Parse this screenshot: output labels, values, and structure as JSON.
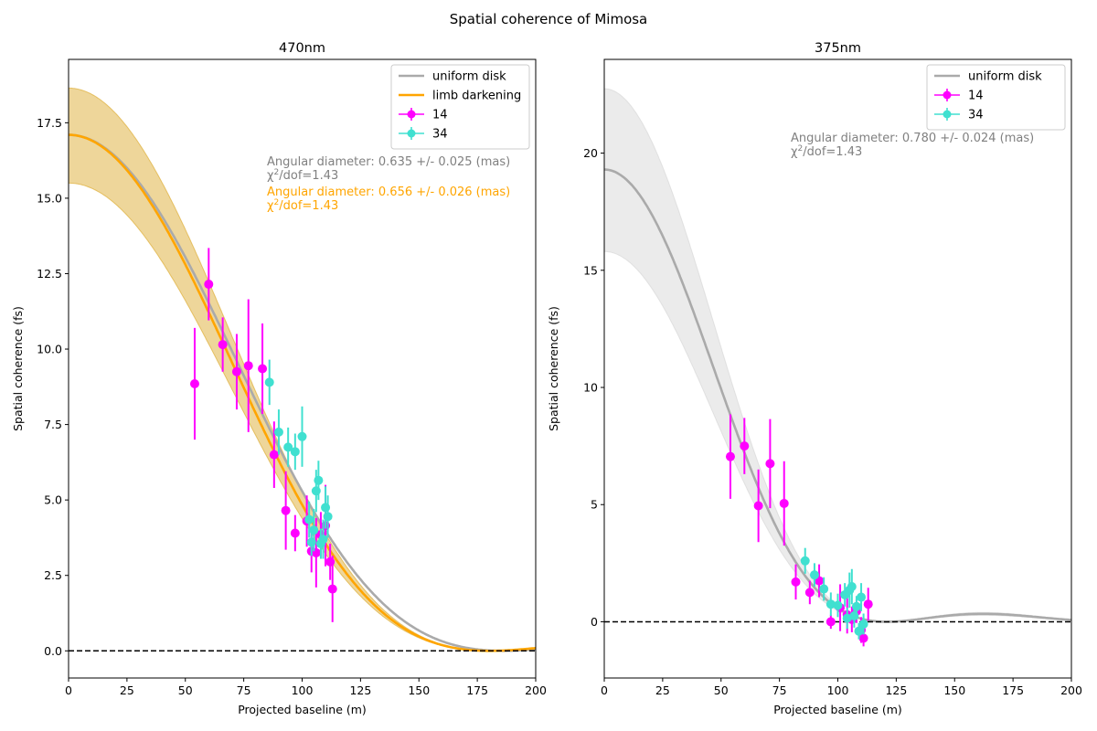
{
  "figure": {
    "title": "Spatial coherence of Mimosa"
  },
  "chart_data": [
    {
      "type": "scatter",
      "title": "470nm",
      "xlabel": "Projected baseline (m)",
      "ylabel": "Spatial coherence (fs)",
      "xlim": [
        0,
        200
      ],
      "ylim": [
        -0.9,
        19.6
      ],
      "xticks": [
        0,
        25,
        50,
        75,
        100,
        125,
        150,
        175,
        200
      ],
      "yticks": [
        0.0,
        2.5,
        5.0,
        7.5,
        10.0,
        12.5,
        15.0,
        17.5
      ],
      "ytick_labels": [
        "0.0",
        "2.5",
        "5.0",
        "7.5",
        "10.0",
        "12.5",
        "15.0",
        "17.5"
      ],
      "grid": false,
      "legend": {
        "position": "top-right",
        "entries": [
          {
            "label": "uniform disk",
            "kind": "line",
            "color": "#aaaaaa"
          },
          {
            "label": "limb darkening",
            "kind": "line",
            "color": "#ffa500"
          },
          {
            "label": "14",
            "kind": "errorbar",
            "color": "#ff00ff"
          },
          {
            "label": "34",
            "kind": "errorbar",
            "color": "#40e0d0"
          }
        ]
      },
      "annotations": [
        {
          "line1": "Angular diameter: 0.635 +/- 0.025 (mas)",
          "line2_pre": "χ",
          "line2_sup": "2",
          "line2_post": "/dof=1.43",
          "color": "#808080"
        },
        {
          "line1": "Angular diameter: 0.656 +/- 0.026 (mas)",
          "line2_pre": "χ",
          "line2_sup": "2",
          "line2_post": "/dof=1.43",
          "color": "#ffa500"
        }
      ],
      "models": [
        {
          "name": "uniform disk",
          "color": "#aaaaaa",
          "peak": 17.1,
          "theta_mas": 0.635,
          "band": false
        },
        {
          "name": "limb darkening",
          "color": "#ffa500",
          "peak": 17.1,
          "theta_mas": 0.656,
          "band": true,
          "band_color": "#daa520",
          "band_peak_upper": 18.65,
          "band_peak_lower": 15.5
        }
      ],
      "wavelength_nm": 470,
      "series": [
        {
          "name": "14",
          "color": "#ff00ff",
          "x": [
            54,
            60,
            66,
            72,
            77,
            83,
            88,
            93,
            97,
            102,
            104,
            106,
            108,
            110,
            112,
            113
          ],
          "y": [
            8.85,
            12.15,
            10.15,
            9.25,
            9.45,
            9.35,
            6.5,
            4.65,
            3.9,
            4.3,
            3.3,
            3.25,
            3.85,
            4.15,
            2.95,
            2.05
          ],
          "err": [
            1.85,
            1.2,
            0.9,
            1.25,
            2.2,
            1.5,
            1.1,
            1.3,
            0.6,
            0.85,
            0.7,
            1.15,
            0.75,
            1.35,
            0.6,
            1.1
          ]
        },
        {
          "name": "34",
          "color": "#40e0d0",
          "x": [
            86,
            90,
            94,
            97,
            100,
            103,
            104,
            105,
            106,
            107,
            108,
            109,
            110,
            111
          ],
          "y": [
            8.9,
            7.25,
            6.75,
            6.6,
            7.1,
            4.35,
            3.6,
            4.0,
            5.3,
            5.65,
            3.55,
            3.7,
            4.75,
            4.45
          ],
          "err": [
            0.75,
            0.75,
            0.65,
            0.6,
            1.0,
            0.6,
            0.45,
            0.7,
            0.7,
            0.65,
            0.5,
            0.65,
            0.7,
            0.7
          ]
        }
      ]
    },
    {
      "type": "scatter",
      "title": "375nm",
      "xlabel": "Projected baseline (m)",
      "ylabel": "Spatial coherence (fs)",
      "xlim": [
        0,
        200
      ],
      "ylim": [
        -2.4,
        24.0
      ],
      "xticks": [
        0,
        25,
        50,
        75,
        100,
        125,
        150,
        175,
        200
      ],
      "yticks": [
        0,
        5,
        10,
        15,
        20
      ],
      "ytick_labels": [
        "0",
        "5",
        "10",
        "15",
        "20"
      ],
      "grid": false,
      "legend": {
        "position": "top-right",
        "entries": [
          {
            "label": "uniform disk",
            "kind": "line",
            "color": "#aaaaaa"
          },
          {
            "label": "14",
            "kind": "errorbar",
            "color": "#ff00ff"
          },
          {
            "label": "34",
            "kind": "errorbar",
            "color": "#40e0d0"
          }
        ]
      },
      "annotations": [
        {
          "line1": "Angular diameter: 0.780 +/- 0.024 (mas)",
          "line2_pre": "χ",
          "line2_sup": "2",
          "line2_post": "/dof=1.43",
          "color": "#808080"
        }
      ],
      "models": [
        {
          "name": "uniform disk",
          "color": "#aaaaaa",
          "peak": 19.3,
          "theta_mas": 0.78,
          "band": true,
          "band_color": "#d3d3d3",
          "band_peak_upper": 22.75,
          "band_peak_lower": 15.8
        }
      ],
      "wavelength_nm": 375,
      "series": [
        {
          "name": "14",
          "color": "#ff00ff",
          "x": [
            54,
            60,
            66,
            71,
            77,
            82,
            88,
            92,
            97,
            101,
            104,
            106,
            108,
            110,
            111,
            113
          ],
          "y": [
            7.05,
            7.5,
            4.95,
            6.75,
            5.05,
            1.7,
            1.25,
            1.75,
            0.0,
            0.6,
            0.3,
            0.1,
            0.45,
            -0.35,
            -0.7,
            0.75
          ],
          "err": [
            1.8,
            1.2,
            1.55,
            1.9,
            1.8,
            0.75,
            0.5,
            0.7,
            0.3,
            1.0,
            0.8,
            0.55,
            0.5,
            0.55,
            0.35,
            0.7
          ]
        },
        {
          "name": "34",
          "color": "#40e0d0",
          "x": [
            86,
            90,
            94,
            97,
            100,
            103,
            104,
            105,
            106,
            107,
            108,
            109,
            110,
            111
          ],
          "y": [
            2.6,
            2.0,
            1.4,
            0.75,
            0.7,
            1.15,
            0.15,
            1.35,
            1.5,
            0.25,
            0.65,
            -0.4,
            1.05,
            -0.1
          ],
          "err": [
            0.55,
            0.5,
            0.5,
            0.5,
            0.5,
            0.5,
            0.45,
            0.75,
            0.75,
            0.5,
            0.45,
            0.35,
            0.6,
            0.45
          ]
        }
      ]
    }
  ]
}
